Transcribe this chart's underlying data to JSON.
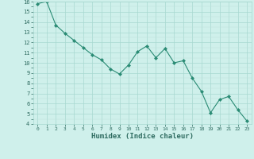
{
  "x": [
    0,
    1,
    2,
    3,
    4,
    5,
    6,
    7,
    8,
    9,
    10,
    11,
    12,
    13,
    14,
    15,
    16,
    17,
    18,
    19,
    20,
    21,
    22,
    23
  ],
  "y": [
    15.8,
    16.0,
    13.7,
    12.9,
    12.2,
    11.5,
    10.8,
    10.3,
    9.4,
    8.9,
    9.8,
    11.1,
    11.65,
    10.5,
    11.4,
    10.0,
    10.2,
    8.5,
    7.2,
    5.1,
    6.4,
    6.7,
    5.4,
    4.3
  ],
  "xlabel": "Humidex (Indice chaleur)",
  "ylim": [
    4,
    16
  ],
  "xlim": [
    -0.5,
    23.5
  ],
  "yticks": [
    4,
    5,
    6,
    7,
    8,
    9,
    10,
    11,
    12,
    13,
    14,
    15,
    16
  ],
  "xticks": [
    0,
    1,
    2,
    3,
    4,
    5,
    6,
    7,
    8,
    9,
    10,
    11,
    12,
    13,
    14,
    15,
    16,
    17,
    18,
    19,
    20,
    21,
    22,
    23
  ],
  "line_color": "#2a8b74",
  "marker_color": "#2a8b74",
  "bg_color": "#cff0eb",
  "grid_color_major": "#a8d8d0",
  "grid_color_minor": "#bde0da",
  "axis_label_color": "#2e6b60",
  "tick_label_color": "#2e6b60"
}
